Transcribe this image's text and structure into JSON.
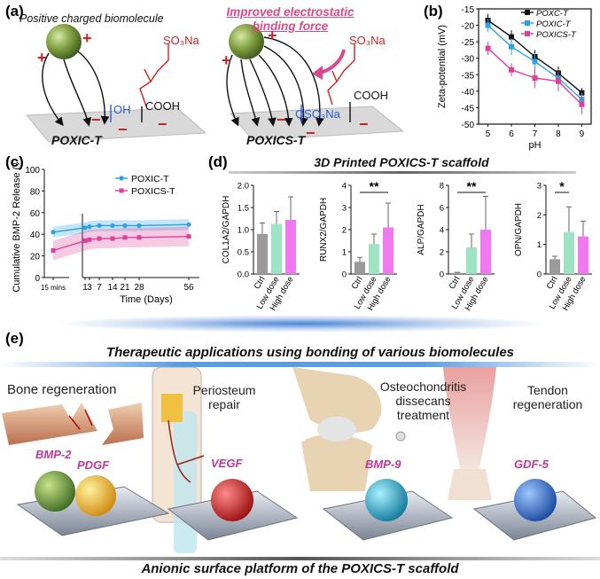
{
  "panels": {
    "a": {
      "label": "(a)",
      "caption_positive": "Positive charged biomolecule",
      "caption_improved": "Improved electrostatic binding force",
      "left_group_oh": "OH",
      "left_group_cooh": "COOH",
      "left_group_so3na": "SO₃Na",
      "left_surface": "POXIC-T",
      "right_group_oso3na": "OSO₃Na",
      "right_group_cooh": "COOH",
      "right_group_so3na": "SO₃Na",
      "right_surface": "POXICS-T",
      "plus": "+",
      "minus": "−"
    },
    "b": {
      "label": "(b)"
    },
    "c": {
      "label": "(c)"
    },
    "d": {
      "label": "(d)",
      "title": "3D Printed POXICS-T scaffold"
    },
    "e": {
      "label": "(e)",
      "title": "Therapeutic applications using bonding of various biomolecules",
      "footer": "Anionic surface platform of the POXICS-T scaffold",
      "apps": [
        {
          "title": "Bone regeneration",
          "factors": [
            "BMP-2",
            "PDGF"
          ]
        },
        {
          "title": "Periosteum repair",
          "factors": [
            "VEGF"
          ]
        },
        {
          "title": "Osteochondritis dissecans treatment",
          "factors": [
            "BMP-9"
          ]
        },
        {
          "title": "Tendon regeneration",
          "factors": [
            "GDF-5"
          ]
        }
      ]
    }
  },
  "colors": {
    "black": "#111111",
    "blue": "#2aa3e6",
    "pink": "#e0409a",
    "green": "#9fe3c5",
    "magenta": "#f079f0",
    "gray": "#9a9a9a",
    "accent": "#c0379a",
    "red": "#d11f2a"
  },
  "chart_data": [
    {
      "id": "b",
      "type": "line",
      "ylabel": "Zeta-potential (mV)",
      "xlabel": "pH",
      "x": [
        5,
        6,
        7,
        8,
        9
      ],
      "xlim": [
        4.6,
        9.4
      ],
      "ylim": [
        -50,
        -15
      ],
      "yticks": [
        -15,
        -20,
        -25,
        -30,
        -35,
        -40,
        -45,
        -50
      ],
      "series": [
        {
          "name": "POXC-T",
          "color": "#111111",
          "values": [
            -18.5,
            -23.5,
            -29.5,
            -34.5,
            -40.5
          ],
          "err": [
            2,
            2,
            2,
            2,
            1.5
          ]
        },
        {
          "name": "POXIC-T",
          "color": "#2aa3e6",
          "values": [
            -20,
            -26.5,
            -31,
            -36,
            -42.5
          ],
          "err": [
            2,
            2.5,
            2.5,
            2,
            2
          ]
        },
        {
          "name": "POXICS-T",
          "color": "#e0409a",
          "values": [
            -27,
            -33.5,
            -36,
            -37,
            -44
          ],
          "err": [
            2,
            2,
            3,
            3,
            3
          ]
        }
      ]
    },
    {
      "id": "c",
      "type": "line",
      "ylabel": "Cumulative BMP-2 Release (%)",
      "xlabel": "Time (Days)",
      "xticks": [
        "15 mins",
        "1",
        "3",
        "7",
        "14",
        "21",
        "28",
        "56"
      ],
      "ylim": [
        0,
        100
      ],
      "yticks": [
        0,
        20,
        40,
        60,
        80,
        100
      ],
      "series": [
        {
          "name": "POXIC-T",
          "color": "#2aa3e6",
          "values": [
            42,
            46,
            47,
            48,
            48,
            48,
            48,
            49
          ]
        },
        {
          "name": "POXICS-T",
          "color": "#e0409a",
          "values": [
            25,
            34,
            35,
            36,
            36,
            37,
            37,
            38
          ]
        }
      ]
    },
    {
      "id": "d",
      "type": "bar",
      "categories": [
        "Ctrl",
        "Low dose",
        "High dose"
      ],
      "bar_colors": [
        "#9a9a9a",
        "#9fe3c5",
        "#f079f0"
      ],
      "subplots": [
        {
          "ylabel": "COL1A2/GAPDH",
          "ymax": 2.0,
          "yticks": [
            "0.0",
            "0.5",
            "1.0",
            "1.5",
            "2.0"
          ],
          "values": [
            0.9,
            1.13,
            1.22
          ],
          "err": [
            0.25,
            0.28,
            0.52
          ],
          "sig": null
        },
        {
          "ylabel": "RUNX2/GAPDH",
          "ymax": 4,
          "yticks": [
            "0",
            "1",
            "2",
            "3",
            "4"
          ],
          "values": [
            0.55,
            1.35,
            2.1
          ],
          "err": [
            0.2,
            0.45,
            1.1
          ],
          "sig": "**"
        },
        {
          "ylabel": "ALP/GAPDH",
          "ymax": 8,
          "yticks": [
            "0",
            "2",
            "4",
            "6",
            "8"
          ],
          "values": [
            0.1,
            2.4,
            4.0
          ],
          "err": [
            0.05,
            1.2,
            3.0
          ],
          "sig": "**"
        },
        {
          "ylabel": "OPN/GAPDH",
          "ymax": 3,
          "yticks": [
            "0",
            "1",
            "2",
            "3"
          ],
          "values": [
            0.5,
            1.42,
            1.27
          ],
          "err": [
            0.1,
            0.85,
            0.52
          ],
          "sig": "*"
        }
      ]
    }
  ]
}
